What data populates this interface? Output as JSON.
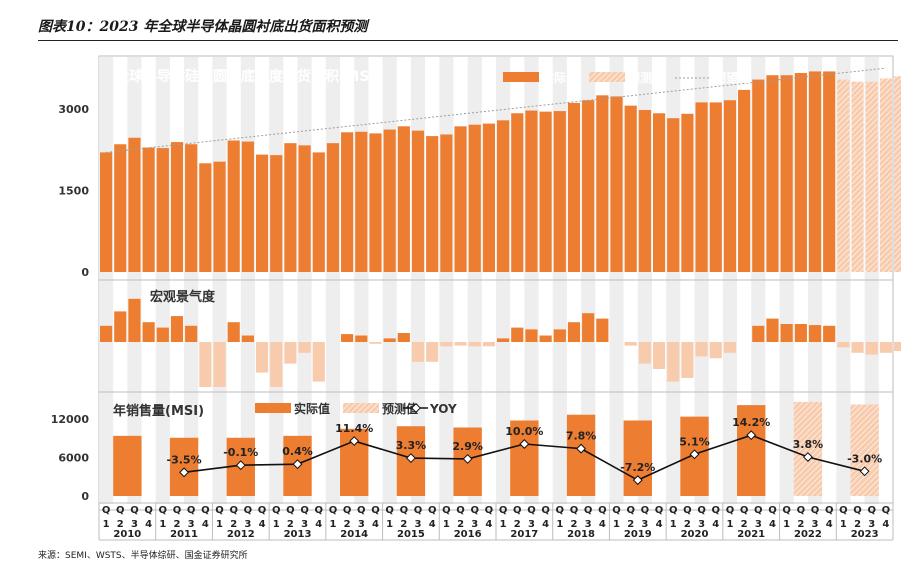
{
  "figure_title": "图表10：2023 年全球半导体晶圆衬底出货面积预测",
  "source": "来源：SEMI、WSTS、半导体综研、国金证券研究所",
  "colors": {
    "actual": "#ED7D31",
    "forecast": "#F8CBAD",
    "macro_neg": "#F8CBAD",
    "yoy_line": "#111111",
    "band": "#EEEEEE",
    "trend": "#9E9E9E"
  },
  "chart_data": [
    {
      "id": "shipment",
      "type": "bar",
      "title": "全球半导体硅晶圆衬底季度出货面积(MSI)",
      "legend": [
        "实际值",
        "预测值",
        "期望值"
      ],
      "y_ticks": [
        0,
        1500,
        3000
      ],
      "ylim": [
        0,
        3900
      ],
      "quarters_per_year": 4,
      "actual_values": [
        2200,
        2350,
        2470,
        2290,
        2280,
        2390,
        2350,
        2000,
        2030,
        2420,
        2400,
        2160,
        2150,
        2370,
        2330,
        2200,
        2370,
        2570,
        2580,
        2550,
        2620,
        2680,
        2600,
        2500,
        2530,
        2680,
        2710,
        2730,
        2790,
        2920,
        2970,
        2950,
        2960,
        3110,
        3160,
        3250,
        3230,
        3060,
        2980,
        2920,
        2830,
        2910,
        3120,
        3120,
        3160,
        3350,
        3540,
        3620,
        3620,
        3660,
        3690,
        3690
      ],
      "forecast_values": [
        3540,
        3500,
        3500,
        3560,
        3600
      ],
      "trend_start": 2200,
      "trend_end": 3750
    },
    {
      "id": "macro",
      "type": "bar",
      "title": "宏观景气度",
      "values": [
        0.45,
        0.85,
        1.2,
        0.55,
        0.4,
        0.72,
        0.45,
        -1.25,
        -1.25,
        0.55,
        0.18,
        -0.85,
        -1.25,
        -0.6,
        -0.3,
        -1.1,
        0,
        0.22,
        0.18,
        -0.05,
        0.1,
        0.25,
        -0.55,
        -0.55,
        -0.12,
        -0.1,
        -0.12,
        -0.12,
        0.1,
        0.4,
        0.35,
        0.18,
        0.35,
        0.55,
        0.8,
        0.65,
        0,
        -0.1,
        -0.6,
        -0.75,
        -1.1,
        -1.0,
        -0.4,
        -0.45,
        -0.3,
        0,
        0.45,
        0.65,
        0.5,
        0.5,
        0.47,
        0.45,
        -0.15,
        -0.3,
        -0.35,
        -0.3,
        -0.25
      ],
      "forecast_from_index": 52
    },
    {
      "id": "annual",
      "type": "bar+line",
      "title": "年销售量(MSI)",
      "legend": [
        "实际值",
        "预测值",
        "YOY"
      ],
      "y_ticks": [
        0,
        6000,
        12000
      ],
      "ylim": [
        0,
        15000
      ],
      "years": [
        "2010",
        "2011",
        "2012",
        "2013",
        "2014",
        "2015",
        "2016",
        "2017",
        "2018",
        "2019",
        "2020",
        "2021",
        "2022",
        "2023"
      ],
      "values": [
        9400,
        9100,
        9100,
        9400,
        10500,
        10900,
        10700,
        11800,
        12700,
        11800,
        12400,
        14200,
        14700,
        14300
      ],
      "forecast_years": [
        "2022",
        "2023"
      ],
      "yoy_pct": [
        null,
        -3.5,
        -0.1,
        0.4,
        11.4,
        3.3,
        2.9,
        10.0,
        7.8,
        -7.2,
        5.1,
        14.2,
        3.8,
        -3.0
      ],
      "yoy_labels": [
        "",
        "-3.5%",
        "-0.1%",
        "0.4%",
        "11.4%",
        "3.3%",
        "2.9%",
        "10.0%",
        "7.8%",
        "-7.2%",
        "5.1%",
        "14.2%",
        "3.8%",
        "-3.0%"
      ]
    }
  ],
  "x_axis": {
    "years": [
      "2010",
      "2011",
      "2012",
      "2013",
      "2014",
      "2015",
      "2016",
      "2017",
      "2018",
      "2019",
      "2020",
      "2021",
      "2022",
      "2023"
    ],
    "quarter_letter": "Q",
    "quarter_numbers": [
      "1",
      "2",
      "3",
      "4"
    ]
  }
}
